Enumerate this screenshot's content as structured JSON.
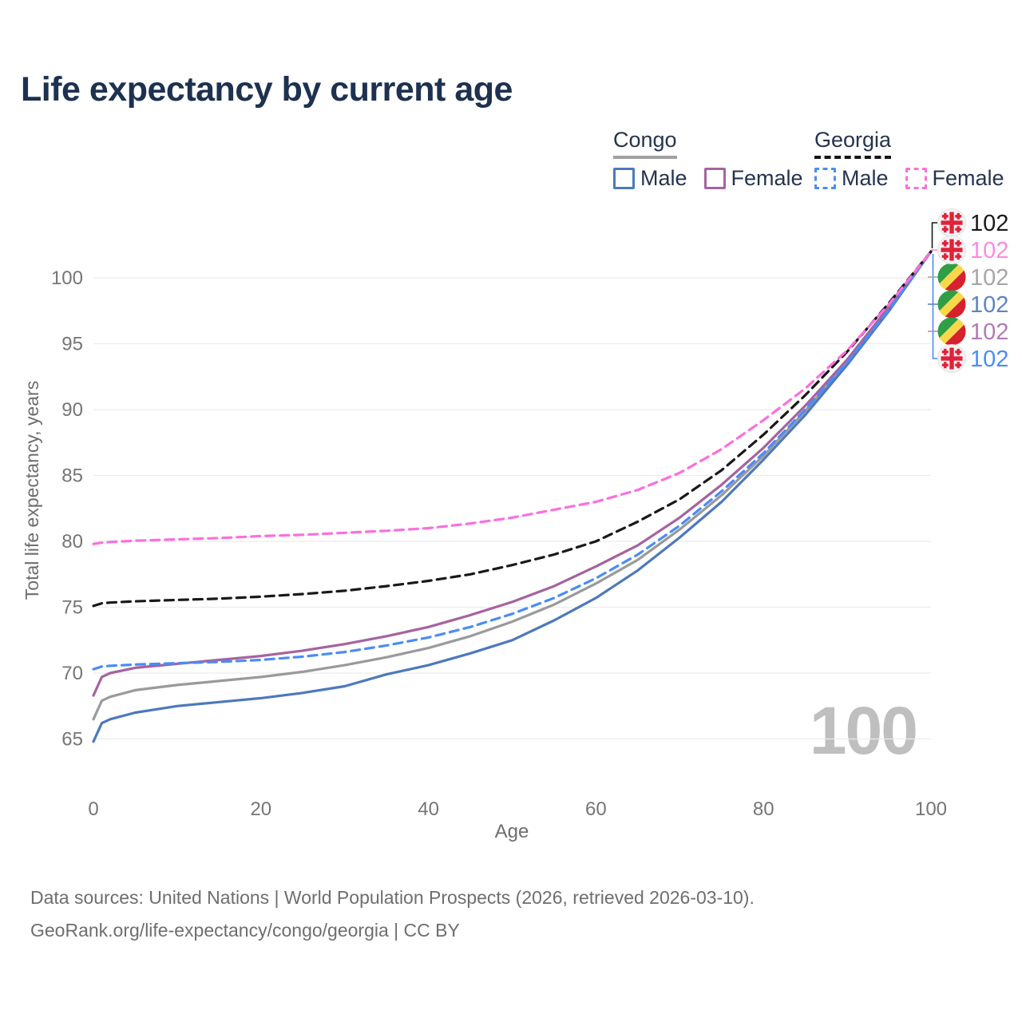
{
  "title": "Life expectancy by current age",
  "legend": {
    "congo": {
      "label": "Congo",
      "male": "Male",
      "female": "Female"
    },
    "georgia": {
      "label": "Georgia",
      "male": "Male",
      "female": "Female"
    }
  },
  "watermark": "100",
  "footer": {
    "line1": "Data sources: United Nations | World Population Prospects (2026, retrieved 2026-03-10).",
    "line2": "GeoRank.org/life-expectancy/congo/georgia | CC BY"
  },
  "colors": {
    "title_navy": "#1d3150",
    "grid": "#ececec",
    "tick_text": "#757575",
    "axis_title_text": "#6d6d6d",
    "watermark_gray": "#bfbfbf",
    "congo_male_blue": "#4d79bc",
    "congo_female_purple": "#a5639f",
    "congo_total_gray": "#9a9a9a",
    "georgia_male_blue": "#4a8cf7",
    "georgia_female_pink": "#fb6fdc",
    "georgia_total_black": "#191919",
    "georgia_flag_red": "#e0223a",
    "congo_flag_green": "#2f9e45",
    "congo_flag_yellow": "#f8d84a",
    "congo_flag_red": "#d7212e"
  },
  "chart_data": {
    "type": "line",
    "title": "Life expectancy by current age",
    "xlabel": "Age",
    "ylabel": "Total life expectancy, years",
    "xlim": [
      0,
      100
    ],
    "ylim": [
      63,
      103
    ],
    "x_ticks": [
      0,
      20,
      40,
      60,
      80,
      100
    ],
    "y_ticks": [
      65,
      70,
      75,
      80,
      85,
      90,
      95,
      100
    ],
    "grid": true,
    "legend_position": "top-right",
    "ages": [
      0,
      1,
      2,
      5,
      10,
      15,
      20,
      25,
      30,
      35,
      40,
      45,
      50,
      55,
      60,
      65,
      70,
      75,
      80,
      85,
      90,
      95,
      100
    ],
    "series": [
      {
        "name": "Congo Total",
        "country": "Congo",
        "sex": "Both",
        "color": "#9a9a9a",
        "line_style": "solid",
        "end_value": 102,
        "end_label": "102",
        "label_color": "#a6a6a6",
        "flag": "congo",
        "end_row": 2,
        "values": [
          66.5,
          67.9,
          68.2,
          68.7,
          69.1,
          69.4,
          69.7,
          70.1,
          70.6,
          71.2,
          71.9,
          72.8,
          73.9,
          75.2,
          76.8,
          78.6,
          80.9,
          83.5,
          86.5,
          89.9,
          93.6,
          97.7,
          102
        ]
      },
      {
        "name": "Congo Male",
        "country": "Congo",
        "sex": "Male",
        "color": "#4d79bc",
        "line_style": "solid",
        "end_value": 102,
        "end_label": "102",
        "label_color": "#5d84c8",
        "flag": "congo",
        "end_row": 3,
        "values": [
          64.8,
          66.2,
          66.5,
          67.0,
          67.5,
          67.8,
          68.1,
          68.5,
          69.0,
          69.9,
          70.6,
          71.5,
          72.5,
          74.0,
          75.7,
          77.8,
          80.3,
          83.0,
          86.2,
          89.6,
          93.4,
          97.5,
          102
        ]
      },
      {
        "name": "Congo Female",
        "country": "Congo",
        "sex": "Female",
        "color": "#a5639f",
        "line_style": "solid",
        "end_value": 102,
        "end_label": "102",
        "label_color": "#b07cb4",
        "flag": "congo",
        "end_row": 4,
        "values": [
          68.3,
          69.7,
          70.0,
          70.4,
          70.7,
          71.0,
          71.3,
          71.7,
          72.2,
          72.8,
          73.5,
          74.4,
          75.4,
          76.6,
          78.1,
          79.7,
          81.8,
          84.3,
          87.1,
          90.3,
          93.8,
          97.8,
          102
        ]
      },
      {
        "name": "Georgia Male",
        "country": "Georgia",
        "sex": "Male",
        "color": "#4a8cf7",
        "line_style": "dashed",
        "end_value": 102,
        "end_label": "102",
        "label_color": "#4a8cf7",
        "flag": "georgia",
        "end_row": 5,
        "values": [
          70.3,
          70.5,
          70.55,
          70.65,
          70.75,
          70.85,
          71.0,
          71.25,
          71.6,
          72.1,
          72.7,
          73.5,
          74.5,
          75.7,
          77.2,
          79.0,
          81.2,
          83.8,
          86.7,
          90.0,
          93.6,
          97.6,
          102
        ]
      },
      {
        "name": "Georgia Total",
        "country": "Georgia",
        "sex": "Both",
        "color": "#191919",
        "line_style": "dashed",
        "end_value": 102,
        "end_label": "102",
        "label_color": "#1a1a1a",
        "flag": "georgia",
        "end_row": 0,
        "values": [
          75.1,
          75.3,
          75.35,
          75.45,
          75.55,
          75.65,
          75.8,
          76.0,
          76.25,
          76.6,
          77.0,
          77.5,
          78.2,
          79.0,
          80.0,
          81.5,
          83.2,
          85.4,
          88.1,
          91.1,
          94.4,
          98.1,
          102
        ]
      },
      {
        "name": "Georgia Female",
        "country": "Georgia",
        "sex": "Female",
        "color": "#fb6fdc",
        "line_style": "dashed",
        "end_value": 102,
        "end_label": "102",
        "label_color": "#fb8ae4",
        "flag": "georgia",
        "end_row": 1,
        "values": [
          79.8,
          79.9,
          79.95,
          80.05,
          80.15,
          80.25,
          80.4,
          80.5,
          80.65,
          80.8,
          81.0,
          81.35,
          81.8,
          82.4,
          83.0,
          83.9,
          85.2,
          87.0,
          89.2,
          91.6,
          94.5,
          98.0,
          102
        ]
      }
    ]
  }
}
